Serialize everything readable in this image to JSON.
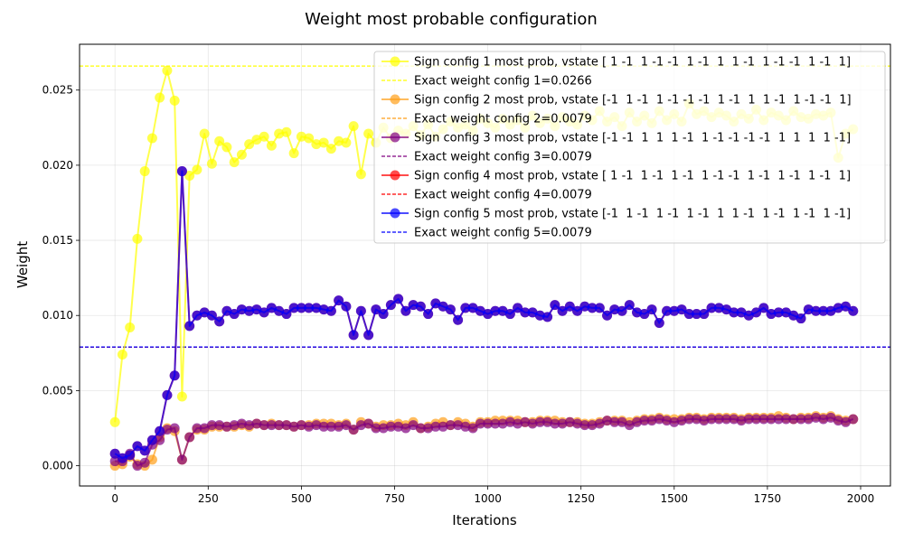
{
  "chart_data": {
    "type": "line",
    "title": "Weight most probable configuration",
    "xlabel": "Iterations",
    "ylabel": "Weight",
    "xlim": [
      -95,
      2080
    ],
    "ylim": [
      -0.00135,
      0.02805
    ],
    "x_ticks": [
      0,
      250,
      500,
      750,
      1000,
      1250,
      1500,
      1750,
      2000
    ],
    "x_tick_labels": [
      "0",
      "250",
      "500",
      "750",
      "1000",
      "1250",
      "1500",
      "1750",
      "2000"
    ],
    "y_ticks": [
      0.0,
      0.005,
      0.01,
      0.015,
      0.02,
      0.025
    ],
    "y_tick_labels": [
      "0.000",
      "0.005",
      "0.010",
      "0.015",
      "0.020",
      "0.025"
    ],
    "grid": true,
    "legend_position": "top-right",
    "x": [
      0,
      20,
      40,
      60,
      80,
      100,
      120,
      140,
      160,
      180,
      200,
      220,
      240,
      260,
      280,
      300,
      320,
      340,
      360,
      380,
      400,
      420,
      440,
      460,
      480,
      500,
      520,
      540,
      560,
      580,
      600,
      620,
      640,
      660,
      680,
      700,
      720,
      740,
      760,
      780,
      800,
      820,
      840,
      860,
      880,
      900,
      920,
      940,
      960,
      980,
      1000,
      1020,
      1040,
      1060,
      1080,
      1100,
      1120,
      1140,
      1160,
      1180,
      1200,
      1220,
      1240,
      1260,
      1280,
      1300,
      1320,
      1340,
      1360,
      1380,
      1400,
      1420,
      1440,
      1460,
      1480,
      1500,
      1520,
      1540,
      1560,
      1580,
      1600,
      1620,
      1640,
      1660,
      1680,
      1700,
      1720,
      1740,
      1760,
      1780,
      1800,
      1820,
      1840,
      1860,
      1880,
      1900,
      1920,
      1940,
      1960,
      1980
    ],
    "series": [
      {
        "name": "Sign config 1 most prob, vstate [ 1 -1  1 -1 -1  1 -1  1  1 -1  1 -1 -1  1 -1  1]",
        "color": "#ffff00",
        "values": [
          0.0029,
          0.0074,
          0.0092,
          0.0151,
          0.0196,
          0.0218,
          0.0245,
          0.0263,
          0.0243,
          0.0046,
          0.0193,
          0.0197,
          0.0221,
          0.0201,
          0.0216,
          0.0212,
          0.0202,
          0.0207,
          0.0214,
          0.0217,
          0.0219,
          0.0213,
          0.0221,
          0.0222,
          0.0208,
          0.0219,
          0.0218,
          0.0214,
          0.0215,
          0.0211,
          0.0216,
          0.0215,
          0.0226,
          0.0194,
          0.0221,
          0.0215,
          0.0225,
          0.0218,
          0.0223,
          0.0221,
          0.0226,
          0.022,
          0.0227,
          0.0219,
          0.0224,
          0.0229,
          0.0225,
          0.0227,
          0.0223,
          0.0231,
          0.0228,
          0.0225,
          0.0231,
          0.0227,
          0.023,
          0.0225,
          0.0233,
          0.0228,
          0.0231,
          0.0226,
          0.0232,
          0.0229,
          0.0227,
          0.0233,
          0.023,
          0.0236,
          0.0229,
          0.0232,
          0.0226,
          0.0235,
          0.0229,
          0.0233,
          0.0228,
          0.0236,
          0.023,
          0.0234,
          0.0229,
          0.0241,
          0.0234,
          0.0236,
          0.0232,
          0.0235,
          0.0233,
          0.0229,
          0.0234,
          0.0231,
          0.0237,
          0.023,
          0.0235,
          0.0233,
          0.023,
          0.0236,
          0.0232,
          0.0231,
          0.0234,
          0.0233,
          0.0235,
          0.0205,
          0.0221,
          0.0224
        ]
      },
      {
        "name": "Sign config 2 most prob, vstate [-1  1 -1  1 -1 -1 -1  1 -1  1  1 -1  1 -1 -1  1]",
        "color": "#ff9f1a",
        "values": [
          0.0,
          0.0001,
          0.0006,
          0.0001,
          0.0,
          0.0004,
          0.0019,
          0.0025,
          0.0023,
          0.0004,
          0.0019,
          0.0024,
          0.0024,
          0.0026,
          0.0026,
          0.0026,
          0.0026,
          0.0027,
          0.0026,
          0.0028,
          0.0027,
          0.0028,
          0.0027,
          0.0027,
          0.0026,
          0.0027,
          0.0027,
          0.0028,
          0.0028,
          0.0028,
          0.0027,
          0.0028,
          0.0024,
          0.0029,
          0.0028,
          0.0026,
          0.0027,
          0.0027,
          0.0028,
          0.0027,
          0.0029,
          0.0025,
          0.0026,
          0.0028,
          0.0029,
          0.0027,
          0.0029,
          0.0028,
          0.0026,
          0.0029,
          0.0029,
          0.003,
          0.003,
          0.003,
          0.003,
          0.0029,
          0.0029,
          0.003,
          0.003,
          0.003,
          0.0029,
          0.0029,
          0.0029,
          0.0028,
          0.0028,
          0.0029,
          0.003,
          0.003,
          0.003,
          0.0029,
          0.003,
          0.0031,
          0.0031,
          0.0032,
          0.0031,
          0.0031,
          0.0031,
          0.0032,
          0.0032,
          0.0031,
          0.0032,
          0.0032,
          0.0032,
          0.0032,
          0.0031,
          0.0032,
          0.0032,
          0.0032,
          0.0032,
          0.0033,
          0.0032,
          0.0031,
          0.0032,
          0.0032,
          0.0033,
          0.0032,
          0.0033,
          0.0031,
          0.003,
          0.0031
        ]
      },
      {
        "name": "Sign config 3 most prob, vstate [-1 -1  1  1  1 -1  1 -1 -1 -1 -1  1  1  1  1 -1]",
        "color": "#800080",
        "values": [
          0.0003,
          0.0003,
          0.0008,
          0.0,
          0.0002,
          0.0014,
          0.0017,
          0.0024,
          0.0025,
          0.0004,
          0.0019,
          0.0025,
          0.0025,
          0.0027,
          0.0027,
          0.0026,
          0.0027,
          0.0028,
          0.0027,
          0.0028,
          0.0027,
          0.0027,
          0.0027,
          0.0027,
          0.0026,
          0.0027,
          0.0026,
          0.0027,
          0.0026,
          0.0026,
          0.0026,
          0.0027,
          0.0024,
          0.0027,
          0.0028,
          0.0025,
          0.0025,
          0.0026,
          0.0026,
          0.0025,
          0.0027,
          0.0025,
          0.0025,
          0.0026,
          0.0026,
          0.0027,
          0.0027,
          0.0026,
          0.0025,
          0.0028,
          0.0028,
          0.0028,
          0.0028,
          0.0029,
          0.0028,
          0.0029,
          0.0028,
          0.0029,
          0.0029,
          0.0028,
          0.0028,
          0.0029,
          0.0028,
          0.0027,
          0.0027,
          0.0028,
          0.003,
          0.0029,
          0.0029,
          0.0027,
          0.0029,
          0.003,
          0.003,
          0.0031,
          0.003,
          0.0029,
          0.003,
          0.0031,
          0.0031,
          0.003,
          0.0031,
          0.0031,
          0.0031,
          0.0031,
          0.003,
          0.0031,
          0.0031,
          0.0031,
          0.0031,
          0.0031,
          0.0031,
          0.0031,
          0.0031,
          0.0031,
          0.0032,
          0.0031,
          0.0032,
          0.003,
          0.0029,
          0.0031
        ]
      },
      {
        "name": "Sign config 4 most prob, vstate [ 1 -1  1 -1  1 -1  1 -1 -1  1 -1  1 -1  1 -1  1]",
        "color": "#ff0000",
        "values": [
          0.0008,
          0.0005,
          0.0007,
          0.0013,
          0.001,
          0.0017,
          0.0023,
          0.0047,
          0.006,
          0.0196,
          0.0093,
          0.01,
          0.0102,
          0.01,
          0.0096,
          0.0103,
          0.0101,
          0.0104,
          0.0103,
          0.0104,
          0.0102,
          0.0105,
          0.0103,
          0.0101,
          0.0105,
          0.0105,
          0.0105,
          0.0105,
          0.0104,
          0.0103,
          0.011,
          0.0106,
          0.0087,
          0.0103,
          0.0087,
          0.0104,
          0.0101,
          0.0107,
          0.0111,
          0.0103,
          0.0107,
          0.0106,
          0.0101,
          0.0108,
          0.0106,
          0.0104,
          0.0097,
          0.0105,
          0.0105,
          0.0103,
          0.0101,
          0.0103,
          0.0103,
          0.0101,
          0.0105,
          0.0102,
          0.0102,
          0.01,
          0.0099,
          0.0107,
          0.0103,
          0.0106,
          0.0103,
          0.0106,
          0.0105,
          0.0105,
          0.01,
          0.0104,
          0.0103,
          0.0107,
          0.0102,
          0.0101,
          0.0104,
          0.0095,
          0.0103,
          0.0103,
          0.0104,
          0.0101,
          0.0101,
          0.0101,
          0.0105,
          0.0105,
          0.0104,
          0.0102,
          0.0102,
          0.01,
          0.0102,
          0.0105,
          0.0101,
          0.0102,
          0.0102,
          0.01,
          0.0098,
          0.0104,
          0.0103,
          0.0103,
          0.0103,
          0.0105,
          0.0106,
          0.0103
        ]
      },
      {
        "name": "Sign config 5 most prob, vstate [-1  1 -1  1 -1  1 -1  1  1 -1  1 -1  1 -1  1 -1]",
        "color": "#0000ff",
        "values": [
          0.0008,
          0.0005,
          0.0007,
          0.0013,
          0.001,
          0.0017,
          0.0023,
          0.0047,
          0.006,
          0.0196,
          0.0093,
          0.01,
          0.0102,
          0.01,
          0.0096,
          0.0103,
          0.0101,
          0.0104,
          0.0103,
          0.0104,
          0.0102,
          0.0105,
          0.0103,
          0.0101,
          0.0105,
          0.0105,
          0.0105,
          0.0105,
          0.0104,
          0.0103,
          0.011,
          0.0106,
          0.0087,
          0.0103,
          0.0087,
          0.0104,
          0.0101,
          0.0107,
          0.0111,
          0.0103,
          0.0107,
          0.0106,
          0.0101,
          0.0108,
          0.0106,
          0.0104,
          0.0097,
          0.0105,
          0.0105,
          0.0103,
          0.0101,
          0.0103,
          0.0103,
          0.0101,
          0.0105,
          0.0102,
          0.0102,
          0.01,
          0.0099,
          0.0107,
          0.0103,
          0.0106,
          0.0103,
          0.0106,
          0.0105,
          0.0105,
          0.01,
          0.0104,
          0.0103,
          0.0107,
          0.0102,
          0.0101,
          0.0104,
          0.0095,
          0.0103,
          0.0103,
          0.0104,
          0.0101,
          0.0101,
          0.0101,
          0.0105,
          0.0105,
          0.0104,
          0.0102,
          0.0102,
          0.01,
          0.0102,
          0.0105,
          0.0101,
          0.0102,
          0.0102,
          0.01,
          0.0098,
          0.0104,
          0.0103,
          0.0103,
          0.0103,
          0.0105,
          0.0106,
          0.0103
        ]
      }
    ],
    "reference_lines": [
      {
        "name": "Exact weight config 1=0.0266",
        "value": 0.0266,
        "color": "#ffff00"
      },
      {
        "name": "Exact weight config 2=0.0079",
        "value": 0.0079,
        "color": "#ff9f1a"
      },
      {
        "name": "Exact weight config 3=0.0079",
        "value": 0.0079,
        "color": "#800080"
      },
      {
        "name": "Exact weight config 4=0.0079",
        "value": 0.0079,
        "color": "#ff0000"
      },
      {
        "name": "Exact weight config 5=0.0079",
        "value": 0.0079,
        "color": "#0000ff"
      }
    ]
  }
}
